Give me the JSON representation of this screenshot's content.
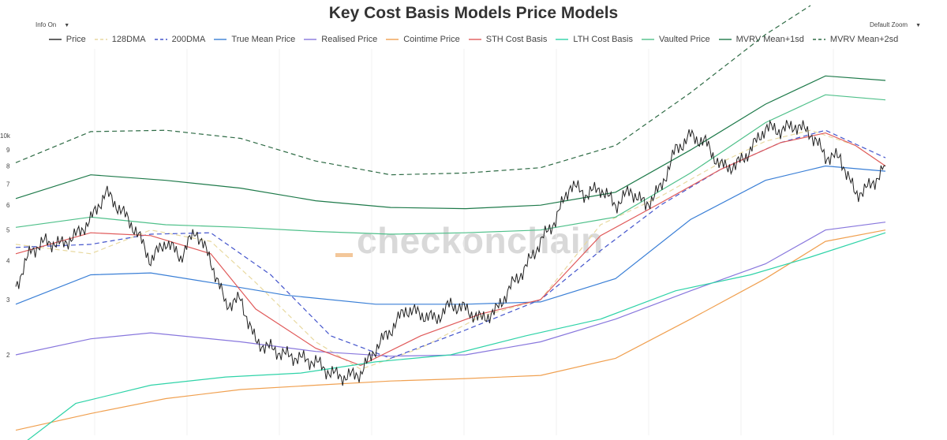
{
  "title": "Key Cost Basis Models Price Models",
  "controls": {
    "info_label": "Info On",
    "info_arrow": "▼",
    "zoom_label": "Default Zoom",
    "zoom_arrow": "▼"
  },
  "watermark": "checkonchain",
  "legend": [
    {
      "name": "Price",
      "color": "#222222",
      "dash": "solid"
    },
    {
      "name": "128DMA",
      "color": "#e8d9a0",
      "dash": "dashed"
    },
    {
      "name": "200DMA",
      "color": "#4455cc",
      "dash": "dashed"
    },
    {
      "name": "True Mean Price",
      "color": "#3a7fd6",
      "dash": "solid"
    },
    {
      "name": "Realised Price",
      "color": "#8877dd",
      "dash": "solid"
    },
    {
      "name": "Cointime Price",
      "color": "#f0a050",
      "dash": "solid"
    },
    {
      "name": "STH Cost Basis",
      "color": "#e05a5a",
      "dash": "solid"
    },
    {
      "name": "LTH Cost Basis",
      "color": "#2fd3a8",
      "dash": "solid"
    },
    {
      "name": "Vaulted Price",
      "color": "#4fc08a",
      "dash": "solid"
    },
    {
      "name": "MVRV Mean+1sd",
      "color": "#1e7a4a",
      "dash": "solid"
    },
    {
      "name": "MVRV Mean+2sd",
      "color": "#2e6b45",
      "dash": "dashed"
    }
  ],
  "chart_data": {
    "type": "line",
    "y_scale": "log",
    "ytick_labels": [
      "10k",
      "9",
      "8",
      "7",
      "6",
      "5",
      "4",
      "3",
      "2"
    ],
    "grid": true,
    "legend_position": "top",
    "series": [
      {
        "name": "Price",
        "values": [
          [
            0,
            3.3
          ],
          [
            1,
            4.3
          ],
          [
            2,
            4.6
          ],
          [
            3,
            4.5
          ],
          [
            4,
            4.8
          ],
          [
            5,
            5.4
          ],
          [
            6,
            6.6
          ],
          [
            7,
            5.8
          ],
          [
            8,
            5.0
          ],
          [
            9,
            4.0
          ],
          [
            10,
            4.6
          ],
          [
            11,
            4.1
          ],
          [
            12,
            5.0
          ],
          [
            13,
            4.0
          ],
          [
            14,
            2.9
          ],
          [
            15,
            3.0
          ],
          [
            16,
            2.2
          ],
          [
            17,
            2.1
          ],
          [
            18,
            2.0
          ],
          [
            19,
            1.95
          ],
          [
            20,
            1.9
          ],
          [
            21,
            1.75
          ],
          [
            22,
            1.7
          ],
          [
            23,
            1.75
          ],
          [
            24,
            2.1
          ],
          [
            25,
            2.4
          ],
          [
            26,
            2.8
          ],
          [
            27,
            2.7
          ],
          [
            28,
            2.6
          ],
          [
            29,
            2.9
          ],
          [
            30,
            2.8
          ],
          [
            31,
            2.6
          ],
          [
            32,
            2.75
          ],
          [
            33,
            3.3
          ],
          [
            34,
            3.8
          ],
          [
            35,
            4.6
          ],
          [
            36,
            5.4
          ],
          [
            37,
            7.0
          ],
          [
            38,
            6.5
          ],
          [
            39,
            6.8
          ],
          [
            40,
            6.0
          ],
          [
            41,
            6.7
          ],
          [
            42,
            6.0
          ],
          [
            43,
            6.8
          ],
          [
            44,
            9.0
          ],
          [
            45,
            10.0
          ],
          [
            46,
            9.5
          ],
          [
            47,
            8.0
          ],
          [
            48,
            8.0
          ],
          [
            49,
            9.0
          ],
          [
            50,
            10.6
          ],
          [
            51,
            10.4
          ],
          [
            52,
            10.8
          ],
          [
            53,
            10.2
          ],
          [
            54,
            8.6
          ],
          [
            55,
            8.5
          ],
          [
            56,
            6.5
          ],
          [
            57,
            6.9
          ],
          [
            58,
            8.0
          ]
        ]
      },
      {
        "name": "128DMA",
        "values": [
          [
            0,
            4.5
          ],
          [
            5,
            4.2
          ],
          [
            9,
            5.0
          ],
          [
            13,
            4.6
          ],
          [
            16,
            3.4
          ],
          [
            20,
            2.2
          ],
          [
            23,
            1.8
          ],
          [
            27,
            2.1
          ],
          [
            31,
            2.65
          ],
          [
            35,
            3.0
          ],
          [
            39,
            5.2
          ],
          [
            43,
            6.4
          ],
          [
            47,
            8.2
          ],
          [
            50,
            9.6
          ],
          [
            53,
            10.4
          ],
          [
            56,
            9.3
          ],
          [
            58,
            8.0
          ]
        ]
      },
      {
        "name": "200DMA",
        "values": [
          [
            0,
            4.4
          ],
          [
            5,
            4.5
          ],
          [
            9,
            4.85
          ],
          [
            13,
            4.9
          ],
          [
            17,
            3.6
          ],
          [
            21,
            2.3
          ],
          [
            25,
            1.95
          ],
          [
            30,
            2.4
          ],
          [
            35,
            3.0
          ],
          [
            39,
            4.3
          ],
          [
            43,
            6.0
          ],
          [
            47,
            7.8
          ],
          [
            51,
            9.5
          ],
          [
            54,
            10.4
          ],
          [
            58,
            8.5
          ]
        ]
      },
      {
        "name": "True Mean Price",
        "values": [
          [
            0,
            2.9
          ],
          [
            5,
            3.6
          ],
          [
            9,
            3.65
          ],
          [
            13,
            3.4
          ],
          [
            18,
            3.1
          ],
          [
            24,
            2.9
          ],
          [
            30,
            2.9
          ],
          [
            35,
            2.95
          ],
          [
            40,
            3.5
          ],
          [
            45,
            5.4
          ],
          [
            50,
            7.2
          ],
          [
            54,
            8.0
          ],
          [
            58,
            7.7
          ]
        ]
      },
      {
        "name": "Realised Price",
        "values": [
          [
            0,
            2.0
          ],
          [
            5,
            2.25
          ],
          [
            9,
            2.35
          ],
          [
            15,
            2.2
          ],
          [
            20,
            2.05
          ],
          [
            25,
            1.98
          ],
          [
            30,
            2.0
          ],
          [
            35,
            2.2
          ],
          [
            40,
            2.6
          ],
          [
            45,
            3.2
          ],
          [
            50,
            3.9
          ],
          [
            54,
            5.0
          ],
          [
            58,
            5.3
          ]
        ]
      },
      {
        "name": "Cointime Price",
        "values": [
          [
            0,
            1.15
          ],
          [
            5,
            1.3
          ],
          [
            10,
            1.45
          ],
          [
            15,
            1.55
          ],
          [
            20,
            1.6
          ],
          [
            25,
            1.65
          ],
          [
            30,
            1.68
          ],
          [
            35,
            1.72
          ],
          [
            40,
            1.95
          ],
          [
            45,
            2.6
          ],
          [
            50,
            3.5
          ],
          [
            54,
            4.6
          ],
          [
            58,
            5.0
          ]
        ]
      },
      {
        "name": "STH Cost Basis",
        "values": [
          [
            0,
            4.2
          ],
          [
            5,
            4.9
          ],
          [
            9,
            4.8
          ],
          [
            13,
            4.2
          ],
          [
            16,
            2.8
          ],
          [
            20,
            2.1
          ],
          [
            23,
            1.85
          ],
          [
            27,
            2.3
          ],
          [
            31,
            2.7
          ],
          [
            35,
            3.0
          ],
          [
            39,
            4.8
          ],
          [
            43,
            6.1
          ],
          [
            47,
            7.8
          ],
          [
            51,
            9.5
          ],
          [
            54,
            10.2
          ],
          [
            56,
            9.3
          ],
          [
            58,
            8.0
          ]
        ]
      },
      {
        "name": "LTH Cost Basis",
        "values": [
          [
            0,
            1.0
          ],
          [
            4,
            1.4
          ],
          [
            9,
            1.6
          ],
          [
            14,
            1.7
          ],
          [
            19,
            1.75
          ],
          [
            24,
            1.9
          ],
          [
            29,
            2.0
          ],
          [
            34,
            2.3
          ],
          [
            39,
            2.6
          ],
          [
            44,
            3.2
          ],
          [
            49,
            3.6
          ],
          [
            53,
            4.1
          ],
          [
            58,
            4.9
          ]
        ]
      },
      {
        "name": "Vaulted Price",
        "values": [
          [
            0,
            5.1
          ],
          [
            5,
            5.5
          ],
          [
            10,
            5.2
          ],
          [
            15,
            5.1
          ],
          [
            20,
            4.95
          ],
          [
            25,
            4.85
          ],
          [
            30,
            4.9
          ],
          [
            35,
            5.0
          ],
          [
            40,
            5.5
          ],
          [
            45,
            7.6
          ],
          [
            50,
            11.0
          ],
          [
            54,
            13.5
          ],
          [
            58,
            13.0
          ]
        ]
      },
      {
        "name": "MVRV Mean+1sd",
        "values": [
          [
            0,
            6.3
          ],
          [
            5,
            7.5
          ],
          [
            10,
            7.2
          ],
          [
            15,
            6.8
          ],
          [
            20,
            6.2
          ],
          [
            25,
            5.9
          ],
          [
            30,
            5.85
          ],
          [
            35,
            6.0
          ],
          [
            40,
            6.6
          ],
          [
            45,
            9.0
          ],
          [
            50,
            12.6
          ],
          [
            54,
            15.5
          ],
          [
            58,
            15.0
          ]
        ]
      },
      {
        "name": "MVRV Mean+2sd",
        "values": [
          [
            0,
            8.2
          ],
          [
            5,
            10.3
          ],
          [
            10,
            10.4
          ],
          [
            15,
            9.8
          ],
          [
            20,
            8.3
          ],
          [
            25,
            7.5
          ],
          [
            30,
            7.6
          ],
          [
            35,
            7.9
          ],
          [
            40,
            9.3
          ],
          [
            45,
            13.7
          ],
          [
            50,
            21.0
          ],
          [
            53,
            26.0
          ]
        ]
      }
    ]
  }
}
